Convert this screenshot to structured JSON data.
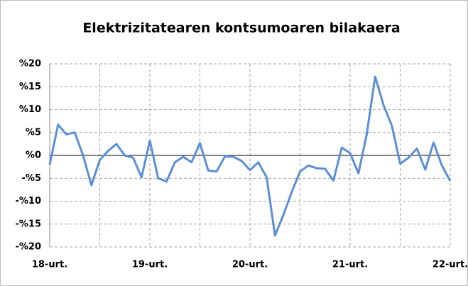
{
  "chart_data": {
    "type": "line",
    "title": "Elektrizitatearen kontsumoaren bilakaera",
    "categories": [
      "18-urt.",
      null,
      null,
      null,
      null,
      null,
      null,
      null,
      null,
      null,
      null,
      null,
      "19-urt.",
      null,
      null,
      null,
      null,
      null,
      null,
      null,
      null,
      null,
      null,
      null,
      "20-urt.",
      null,
      null,
      null,
      null,
      null,
      null,
      null,
      null,
      null,
      null,
      null,
      "21-urt.",
      null,
      null,
      null,
      null,
      null,
      null,
      null,
      null,
      null,
      null,
      null,
      "22-urt."
    ],
    "series": [
      {
        "name": "Elektrizitatearen kontsumoa",
        "color": "#5b8fd6",
        "values": [
          -2,
          6.7,
          4.6,
          5,
          0,
          -6.5,
          -1,
          1,
          2.5,
          0,
          -0.5,
          -4.8,
          3.2,
          -5,
          -5.7,
          -1.5,
          -0.3,
          -1.5,
          2.7,
          -3.3,
          -3.5,
          -0.2,
          -0.3,
          -1.2,
          -3.2,
          -1.5,
          -4.8,
          -17.5,
          -13,
          -8,
          -3.5,
          -2.2,
          -2.8,
          -2.9,
          -5.5,
          1.7,
          0.5,
          -3.9,
          4.7,
          17.2,
          11,
          6.5,
          -1.8,
          -0.5,
          1.5,
          -3.1,
          2.8,
          -2.2,
          -5.6
        ]
      }
    ],
    "ylim": [
      -20,
      20
    ],
    "yticks": [
      {
        "value": -20,
        "label": "-%20"
      },
      {
        "value": -15,
        "label": "-%15"
      },
      {
        "value": -10,
        "label": "-%10"
      },
      {
        "value": -5,
        "label": "-%5"
      },
      {
        "value": 0,
        "label": "%0"
      },
      {
        "value": 5,
        "label": "%5"
      },
      {
        "value": 10,
        "label": "%10"
      },
      {
        "value": 15,
        "label": "%15"
      },
      {
        "value": 20,
        "label": "%20"
      }
    ],
    "grid": true
  }
}
